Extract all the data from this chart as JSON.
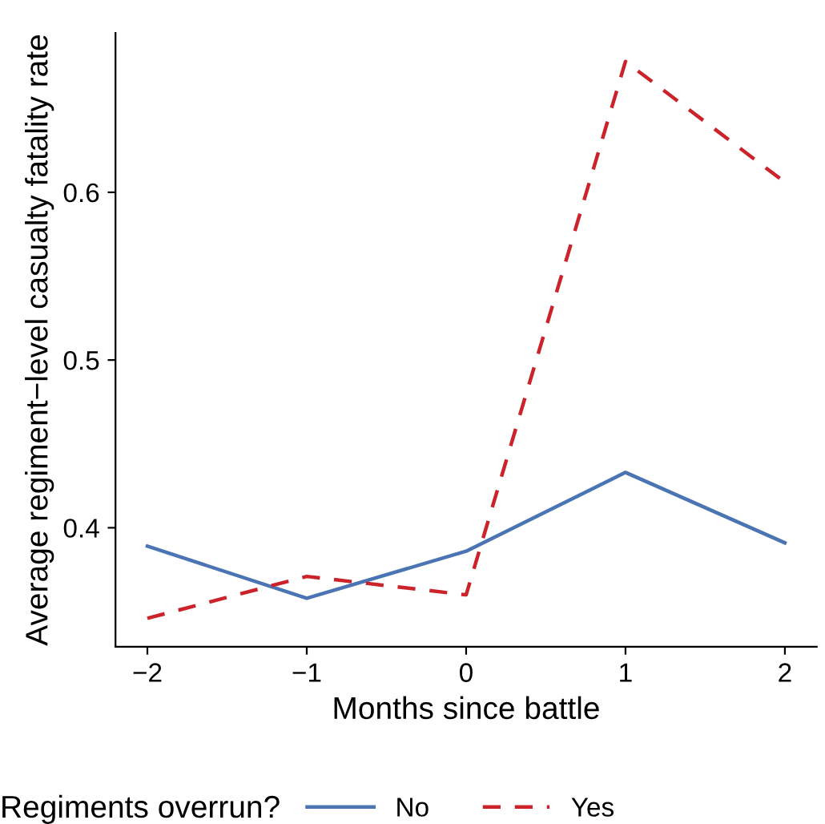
{
  "chart_data": {
    "type": "line",
    "xlabel": "Months since battle",
    "ylabel": "Average regiment−level casualty fatality rate",
    "legend_title": "Regiments overrun?",
    "x": [
      -2,
      -1,
      0,
      1,
      2
    ],
    "series": [
      {
        "name": "No",
        "color": "#4a74b4",
        "values": [
          0.389,
          0.358,
          0.386,
          0.433,
          0.391
        ],
        "line_style": "solid"
      },
      {
        "name": "Yes",
        "color": "#cc2229",
        "values": [
          0.346,
          0.371,
          0.36,
          0.678,
          0.606
        ],
        "line_style": "dashed"
      }
    ],
    "xlim": [
      -2.2,
      2.2
    ],
    "ylim": [
      0.329,
      0.695
    ],
    "xticks": [
      {
        "value": -2,
        "label": "−2"
      },
      {
        "value": -1,
        "label": "−1"
      },
      0,
      1,
      2
    ],
    "yticks": [
      0.4,
      0.5,
      0.6
    ],
    "grid": false,
    "legend": "bottom",
    "marker": "none"
  }
}
